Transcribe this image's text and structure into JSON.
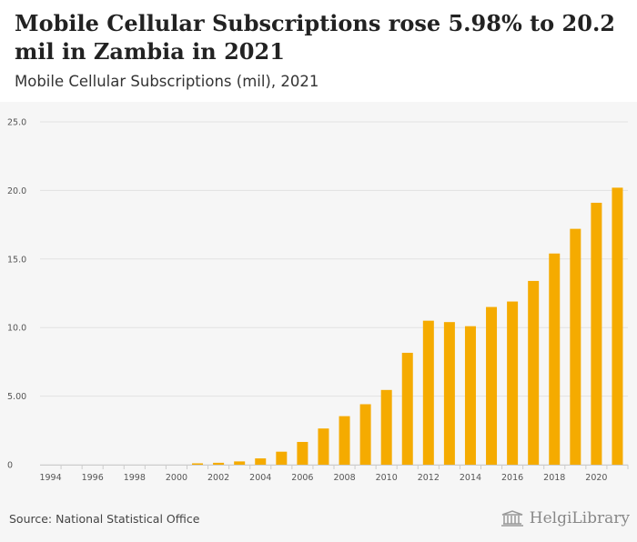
{
  "header": {
    "title": "Mobile Cellular Subscriptions rose 5.98% to 20.2 mil in Zambia in 2021",
    "subtitle": "Mobile Cellular Subscriptions (mil), 2021"
  },
  "footer": {
    "source": "Source: National Statistical Office",
    "logo_text": "HelgiLibrary"
  },
  "colors": {
    "bar": "#f5ab00",
    "grid": "#e2e2e2",
    "background": "#f6f6f6"
  },
  "chart_data": {
    "type": "bar",
    "title": "Mobile Cellular Subscriptions (mil), 2021",
    "xlabel": "",
    "ylabel": "",
    "ylim": [
      0,
      25
    ],
    "yticks": [
      0,
      5,
      10,
      15,
      20,
      25
    ],
    "ytick_labels": [
      "0",
      "5.00",
      "10.0",
      "15.0",
      "20.0",
      "25.0"
    ],
    "grid": true,
    "categories": [
      1994,
      1995,
      1996,
      1997,
      1998,
      1999,
      2000,
      2001,
      2002,
      2003,
      2004,
      2005,
      2006,
      2007,
      2008,
      2009,
      2010,
      2011,
      2012,
      2013,
      2014,
      2015,
      2016,
      2017,
      2018,
      2019,
      2020,
      2021
    ],
    "xtick_labels": [
      "1994",
      "1996",
      "1998",
      "2000",
      "2002",
      "2004",
      "2006",
      "2008",
      "2010",
      "2012",
      "2014",
      "2016",
      "2018",
      "2020"
    ],
    "values": [
      0,
      0,
      0,
      0,
      0,
      0,
      0,
      0.1,
      0.14,
      0.24,
      0.46,
      0.95,
      1.66,
      2.64,
      3.54,
      4.41,
      5.45,
      8.16,
      10.5,
      10.4,
      10.1,
      11.5,
      11.9,
      13.4,
      15.4,
      17.2,
      19.1,
      20.2
    ]
  }
}
